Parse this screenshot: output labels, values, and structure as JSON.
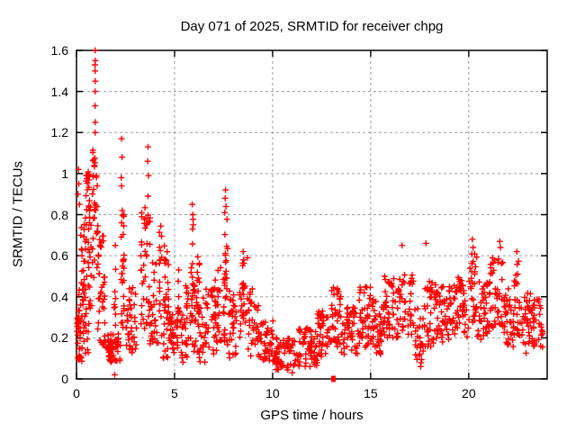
{
  "chart_data": {
    "type": "scatter",
    "title": "Day 071 of 2025, SRMTID for receiver chpg",
    "xlabel": "GPS time / hours",
    "ylabel": "SRMTID / TECUs",
    "xlim": [
      0,
      24
    ],
    "ylim": [
      0,
      1.6
    ],
    "xticks": {
      "values": [
        0,
        5,
        10,
        15,
        20
      ],
      "labels": [
        "0",
        "5",
        "10",
        "15",
        "20"
      ]
    },
    "yticks": {
      "values": [
        0,
        0.2,
        0.4,
        0.6,
        0.8,
        1.0,
        1.2,
        1.4,
        1.6
      ],
      "labels": [
        "0",
        "0.2",
        "0.4",
        "0.6",
        "0.8",
        "1",
        "1.2",
        "1.4",
        "1.6"
      ]
    },
    "grid": true,
    "legend_position": "none",
    "series": [
      {
        "name": "SRMTID",
        "marker": "plus",
        "color": "#ff0000",
        "salient_points": [
          [
            0.1,
            1.02
          ],
          [
            0.12,
            0.95
          ],
          [
            0.08,
            0.9
          ],
          [
            0.15,
            0.85
          ],
          [
            0.5,
            0.68
          ],
          [
            0.95,
            1.6
          ],
          [
            0.96,
            1.55
          ],
          [
            0.94,
            1.53
          ],
          [
            0.95,
            1.5
          ],
          [
            0.96,
            1.45
          ],
          [
            0.95,
            1.4
          ],
          [
            0.95,
            1.33
          ],
          [
            0.96,
            1.25
          ],
          [
            0.95,
            1.2
          ],
          [
            1.98,
            0.65
          ],
          [
            1.95,
            0.02
          ],
          [
            2.3,
            1.17
          ],
          [
            2.32,
            1.08
          ],
          [
            2.28,
            0.98
          ],
          [
            2.3,
            0.94
          ],
          [
            2.33,
            0.82
          ],
          [
            3.65,
            1.13
          ],
          [
            3.63,
            1.06
          ],
          [
            3.67,
            0.99
          ],
          [
            3.65,
            0.89
          ],
          [
            5.9,
            0.85
          ],
          [
            5.93,
            0.8
          ],
          [
            7.6,
            0.92
          ],
          [
            7.58,
            0.88
          ],
          [
            7.62,
            0.84
          ],
          [
            7.56,
            0.81
          ],
          [
            8.5,
            0.62
          ],
          [
            8.52,
            0.58
          ],
          [
            11.0,
            0.03
          ],
          [
            16.6,
            0.65
          ],
          [
            17.55,
            0.06
          ],
          [
            17.82,
            0.66
          ],
          [
            20.18,
            0.68
          ],
          [
            20.22,
            0.64
          ],
          [
            21.58,
            0.67
          ],
          [
            21.62,
            0.64
          ],
          [
            22.45,
            0.62
          ]
        ],
        "clusters_format": [
          "x_start",
          "x_end",
          "y_min",
          "y_max",
          "count"
        ],
        "clusters": [
          [
            0.02,
            0.3,
            0.08,
            0.3,
            30
          ],
          [
            0.1,
            0.35,
            0.3,
            0.48,
            12
          ],
          [
            0.2,
            1.1,
            0.45,
            0.8,
            45
          ],
          [
            0.45,
            1.05,
            0.8,
            1.02,
            30
          ],
          [
            0.85,
            1.02,
            1.02,
            1.12,
            8
          ],
          [
            0.3,
            0.8,
            0.12,
            0.45,
            25
          ],
          [
            1.05,
            1.45,
            0.15,
            0.72,
            38
          ],
          [
            1.5,
            2.25,
            0.08,
            0.22,
            52
          ],
          [
            1.9,
            2.02,
            0.24,
            0.56,
            8
          ],
          [
            2.25,
            2.45,
            0.25,
            0.8,
            26
          ],
          [
            2.5,
            3.1,
            0.1,
            0.45,
            38
          ],
          [
            3.25,
            3.5,
            0.2,
            0.85,
            22
          ],
          [
            3.55,
            3.75,
            0.25,
            0.8,
            20
          ],
          [
            3.75,
            4.35,
            0.12,
            0.58,
            36
          ],
          [
            4.22,
            4.35,
            0.45,
            0.78,
            8
          ],
          [
            4.4,
            4.78,
            0.1,
            0.42,
            28
          ],
          [
            4.45,
            4.7,
            0.4,
            0.73,
            10
          ],
          [
            4.8,
            5.45,
            0.08,
            0.35,
            42
          ],
          [
            5.18,
            5.3,
            0.3,
            0.55,
            8
          ],
          [
            5.5,
            6.1,
            0.1,
            0.48,
            38
          ],
          [
            5.85,
            6.0,
            0.42,
            0.82,
            12
          ],
          [
            6.1,
            6.6,
            0.08,
            0.4,
            32
          ],
          [
            6.15,
            6.27,
            0.35,
            0.62,
            8
          ],
          [
            6.6,
            7.2,
            0.1,
            0.45,
            32
          ],
          [
            6.98,
            7.1,
            0.3,
            0.56,
            8
          ],
          [
            7.2,
            7.7,
            0.15,
            0.55,
            28
          ],
          [
            7.55,
            7.7,
            0.42,
            0.78,
            14
          ],
          [
            7.7,
            8.2,
            0.1,
            0.45,
            32
          ],
          [
            8.3,
            8.72,
            0.2,
            0.6,
            28
          ],
          [
            8.72,
            9.3,
            0.1,
            0.45,
            32
          ],
          [
            9.3,
            10.0,
            0.08,
            0.3,
            42
          ],
          [
            10.0,
            11.3,
            0.04,
            0.2,
            66
          ],
          [
            11.3,
            12.3,
            0.06,
            0.25,
            58
          ],
          [
            12.3,
            13.0,
            0.1,
            0.33,
            44
          ],
          [
            13.0,
            13.5,
            0.15,
            0.45,
            34
          ],
          [
            13.5,
            14.3,
            0.12,
            0.35,
            48
          ],
          [
            14.3,
            15.0,
            0.15,
            0.45,
            44
          ],
          [
            15.0,
            15.6,
            0.12,
            0.4,
            40
          ],
          [
            15.6,
            16.3,
            0.18,
            0.5,
            46
          ],
          [
            16.3,
            17.2,
            0.2,
            0.52,
            52
          ],
          [
            17.2,
            17.7,
            0.06,
            0.35,
            28
          ],
          [
            17.7,
            18.4,
            0.15,
            0.48,
            44
          ],
          [
            18.4,
            19.2,
            0.18,
            0.45,
            48
          ],
          [
            19.2,
            20.0,
            0.2,
            0.5,
            48
          ],
          [
            20.0,
            20.4,
            0.25,
            0.62,
            28
          ],
          [
            20.4,
            21.1,
            0.18,
            0.48,
            44
          ],
          [
            21.1,
            21.8,
            0.25,
            0.6,
            42
          ],
          [
            21.8,
            22.3,
            0.15,
            0.45,
            34
          ],
          [
            22.3,
            22.6,
            0.2,
            0.58,
            24
          ],
          [
            22.6,
            23.3,
            0.12,
            0.42,
            44
          ],
          [
            23.3,
            23.8,
            0.15,
            0.4,
            28
          ]
        ],
        "seed": 20250711
      },
      {
        "name": "marker-at-zero",
        "marker": "filled-square",
        "color": "#ff0000",
        "points": [
          [
            13.1,
            0.0
          ]
        ]
      }
    ]
  },
  "figure": {
    "background": "#ffffff",
    "border_color": "#000000",
    "grid_color": "#9e9e9e",
    "text_color": "#000000",
    "data_color": "#ff0000"
  }
}
